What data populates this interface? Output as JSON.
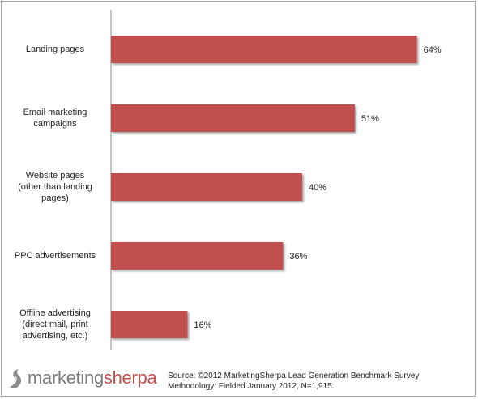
{
  "chart_data": {
    "type": "bar",
    "orientation": "horizontal",
    "categories": [
      "Landing pages",
      "Email marketing campaigns",
      "Website pages (other than landing pages)",
      "PPC advertisements",
      "Offline advertising (direct mail, print advertising, etc.)"
    ],
    "category_lines": [
      [
        "Landing pages"
      ],
      [
        "Email marketing",
        "campaigns"
      ],
      [
        "Website pages",
        "(other than landing",
        "pages)"
      ],
      [
        "PPC advertisements"
      ],
      [
        "Offline advertising",
        "(direct mail, print",
        "advertising, etc.)"
      ]
    ],
    "values": [
      64,
      51,
      40,
      36,
      16
    ],
    "value_labels": [
      "64%",
      "51%",
      "40%",
      "36%",
      "16%"
    ],
    "xlim": [
      0,
      70
    ],
    "bar_color": "#c0504d",
    "grid": false
  },
  "logo": {
    "part1": "marketing",
    "part2": "sherpa",
    "color1": "#7a7a7a",
    "color2": "#c0504d"
  },
  "source": {
    "line1": "Source: ©2012 MarketingSherpa Lead Generation Benchmark Survey",
    "line2": "Methodology: Fielded January 2012, N=1,915"
  }
}
